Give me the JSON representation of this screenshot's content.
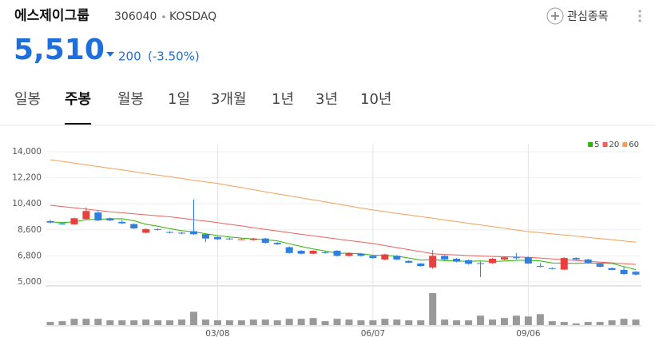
{
  "header": {
    "title": "에스제이그룹",
    "code": "306040",
    "market": "KOSDAQ",
    "price": "5,510",
    "change": "200",
    "change_pct": "(-3.50%)",
    "watch_button": "관심종목"
  },
  "tabs": {
    "items": [
      "일봉",
      "주봉",
      "월봉",
      "1일",
      "3개월",
      "1년",
      "3년",
      "10년"
    ],
    "active": 1
  },
  "chart_data": {
    "type": "candlestick",
    "categories": [
      null,
      null,
      null,
      null,
      null,
      null,
      null,
      null,
      null,
      null,
      null,
      null,
      null,
      null,
      "03/08",
      null,
      null,
      null,
      null,
      null,
      null,
      null,
      null,
      null,
      null,
      null,
      null,
      "06/07",
      null,
      null,
      null,
      null,
      null,
      null,
      null,
      null,
      null,
      null,
      null,
      null,
      "09/06",
      null,
      null,
      null,
      null,
      null,
      null,
      null,
      null,
      null
    ],
    "open": [
      9200,
      9050,
      8980,
      9350,
      9800,
      9400,
      9150,
      9000,
      8400,
      8650,
      8450,
      8400,
      8500,
      8300,
      8100,
      8000,
      7950,
      7900,
      8000,
      7700,
      7400,
      7150,
      6950,
      7050,
      7150,
      6800,
      6950,
      6800,
      6550,
      6800,
      6450,
      6270,
      6000,
      6800,
      6600,
      6500,
      6300,
      6300,
      6550,
      6700,
      6700,
      6100,
      5950,
      5850,
      6650,
      6550,
      6250,
      5950,
      5830,
      5700
    ],
    "high": [
      9300,
      9100,
      9450,
      10150,
      9900,
      9450,
      9300,
      9050,
      8700,
      8700,
      8500,
      8450,
      10700,
      8350,
      8150,
      8050,
      8000,
      8050,
      8050,
      7750,
      7450,
      7200,
      7200,
      7100,
      7200,
      7050,
      7000,
      6850,
      6950,
      6850,
      6500,
      6300,
      7200,
      6850,
      6650,
      6550,
      6400,
      6650,
      6750,
      7000,
      6750,
      6300,
      6000,
      6700,
      6700,
      6600,
      6300,
      6000,
      6050,
      5750
    ],
    "low": [
      9050,
      8950,
      8950,
      9300,
      9200,
      9200,
      9000,
      8650,
      8350,
      8550,
      8350,
      8300,
      8250,
      7750,
      7900,
      7900,
      7900,
      7850,
      7650,
      7550,
      6950,
      6900,
      6900,
      6950,
      6750,
      6750,
      6750,
      6600,
      6500,
      6500,
      6300,
      6050,
      5900,
      6500,
      6350,
      6200,
      5330,
      6250,
      6500,
      6550,
      6250,
      6000,
      5850,
      5800,
      6500,
      6300,
      6000,
      5800,
      5500,
      5450
    ],
    "close": [
      9100,
      8980,
      9400,
      9900,
      9250,
      9250,
      9050,
      8700,
      8650,
      8600,
      8400,
      8350,
      8300,
      8000,
      7950,
      7950,
      7950,
      8000,
      7700,
      7600,
      7000,
      6950,
      7150,
      7000,
      6800,
      7000,
      6800,
      6650,
      6900,
      6550,
      6330,
      6100,
      6800,
      6550,
      6400,
      6250,
      6250,
      6600,
      6700,
      6650,
      6270,
      6050,
      5900,
      6650,
      6550,
      6330,
      6050,
      5830,
      5550,
      5510
    ],
    "up_color": "#e8403f",
    "down_color": "#2f7fdf",
    "ylim": [
      5000,
      14000
    ],
    "yticks": [
      {
        "value": 5000,
        "label": "5,000"
      },
      {
        "value": 6800,
        "label": "6,800"
      },
      {
        "value": 8600,
        "label": "8,600"
      },
      {
        "value": 10400,
        "label": "10,400"
      },
      {
        "value": 12200,
        "label": "12,200"
      },
      {
        "value": 14000,
        "label": "14,000"
      }
    ],
    "grid": true,
    "legend": "top-right",
    "series": [
      {
        "name": "5",
        "color": "#2db400",
        "values": [
          9150,
          9100,
          9150,
          9300,
          9330,
          9360,
          9370,
          9230,
          8980,
          8850,
          8680,
          8540,
          8460,
          8330,
          8200,
          8110,
          8030,
          7970,
          7910,
          7840,
          7640,
          7450,
          7280,
          7140,
          6980,
          6980,
          6950,
          6850,
          6830,
          6780,
          6650,
          6510,
          6540,
          6470,
          6440,
          6420,
          6450,
          6410,
          6440,
          6490,
          6490,
          6450,
          6310,
          6300,
          6280,
          6300,
          6300,
          6280,
          6060,
          5850
        ]
      },
      {
        "name": "20",
        "color": "#f0605b",
        "values": [
          10300,
          10210,
          10120,
          10030,
          9940,
          9850,
          9780,
          9710,
          9640,
          9570,
          9500,
          9400,
          9300,
          9200,
          9100,
          8980,
          8870,
          8750,
          8630,
          8520,
          8400,
          8290,
          8180,
          8080,
          7970,
          7860,
          7760,
          7650,
          7510,
          7370,
          7230,
          7090,
          6950,
          6900,
          6860,
          6820,
          6790,
          6760,
          6740,
          6720,
          6700,
          6650,
          6590,
          6540,
          6480,
          6430,
          6370,
          6320,
          6260,
          6210
        ]
      },
      {
        "name": "60",
        "color": "#f5a05a",
        "values": [
          13450,
          13330,
          13210,
          13090,
          12980,
          12860,
          12740,
          12620,
          12500,
          12390,
          12270,
          12150,
          12030,
          11920,
          11800,
          11660,
          11520,
          11380,
          11230,
          11090,
          10950,
          10810,
          10670,
          10530,
          10390,
          10250,
          10110,
          9970,
          9860,
          9740,
          9630,
          9510,
          9400,
          9280,
          9170,
          9050,
          8940,
          8820,
          8710,
          8590,
          8480,
          8400,
          8320,
          8240,
          8160,
          8080,
          8000,
          7920,
          7830,
          7750
        ]
      }
    ],
    "volume": {
      "color": "#999999",
      "values": [
        4,
        5,
        8,
        8,
        8,
        6,
        6,
        6,
        7,
        6,
        6,
        7,
        17,
        7,
        6,
        6,
        6,
        7,
        7,
        6,
        8,
        8,
        9,
        5,
        8,
        7,
        6,
        6,
        8,
        7,
        6,
        6,
        41,
        7,
        6,
        6,
        12,
        7,
        9,
        12,
        11,
        14,
        5,
        4,
        2,
        4,
        4,
        6,
        8,
        7
      ]
    }
  }
}
